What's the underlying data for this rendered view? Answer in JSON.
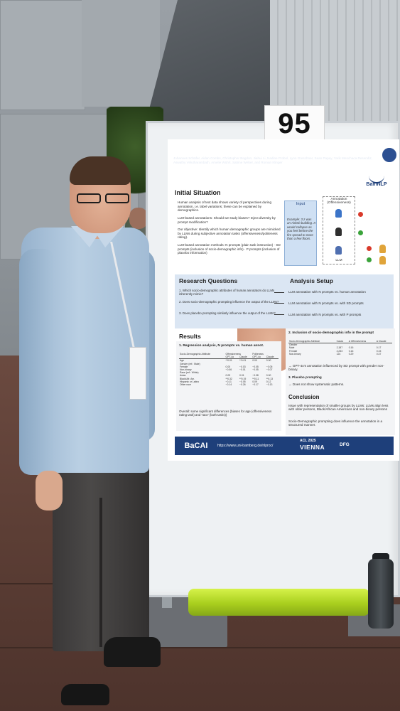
{
  "poster_number": "95",
  "poster": {
    "title": "Which Demographics do LLMs Default to During Annotation?",
    "authors": "Johannes Schäfer, Aidan Combs, Christopher Bagdon, Jiahui Li, Nadine Probol, Lynn Greschner, Sean Papay, Yarik Menchaca Resendiz, Aswathy Velutharambath, Amelie Wührl, Sabine Weber, and Roman Klinger",
    "affiliation": "Fundamentals of Natural Language Processing, University of Bamberg, Germany",
    "lab_logo": "BamNLP",
    "sections": {
      "initial_situation": "Initial Situation",
      "research_questions": "Research Questions",
      "analysis_setup": "Analysis Setup",
      "results": "Results",
      "conclusion": "Conclusion"
    },
    "initial_bullets": [
      "Human analysis of text data shows variety of perspectives during annotation, i.e. label variations; these can be explained by demographics.",
      "LLM-based annotations: Should we study biases? Inject diversity by prompt modification?",
      "Our objective: Identify which human demographic groups are mimicked by LLMs during subjective annotation tasks (offensiveness/politeness rating).",
      "LLM-based annotation methods: N prompts (plain task instruction) · SD prompts (inclusion of socio-demographic info) · P prompts (inclusion of placebo information)"
    ],
    "diagram": {
      "input_label": "Input",
      "example_text": "Example: 3 z was an Airbnb building. It would collapse as you feel before the fire spread to more than a few floors.",
      "annotation_label": "Annotation (Offensiveness)",
      "llm_label": "LLM"
    },
    "research_questions": [
      "1. Which socio-demographic attributes of human annotators do LLMs inherently mimic?",
      "2. Does socio-demographic prompting influence the output of the LLMs?",
      "3. Does placebo prompting similarly influence the output of the LLMs?"
    ],
    "analysis_setup": [
      "LLM annotation with N prompts vs. human annotation",
      "LLM annotation with N prompts vs. with SD prompts",
      "LLM annotation with N prompts vs. with P prompts"
    ],
    "results": {
      "regression_title": "1. Regression analysis, N prompts vs. human annot.",
      "table_header": [
        "Socio-Demographic Attribute",
        "Offensiveness",
        "Politeness"
      ],
      "table_subheader": [
        "",
        "GPT-4o",
        "Claude",
        "GPT-4o",
        "Claude"
      ],
      "table_rows": [
        [
          "Age",
          "**0.01",
          "**0.01",
          "0.00",
          "0.00"
        ],
        [
          "Gender (ref.: Male)",
          "",
          "",
          "",
          ""
        ],
        [
          "Female",
          "0.00",
          "−0.03",
          "−0.05",
          "−0.05"
        ],
        [
          "Non-binary",
          "−0.06",
          "−0.01",
          "−0.05",
          "−0.07"
        ],
        [
          "Race (ref.: White)",
          "",
          "",
          "",
          ""
        ],
        [
          "Asian",
          "0.09",
          "0.01",
          "−0.08",
          "0.00"
        ],
        [
          "Black/Afr. Am.",
          "**0.32",
          "**0.19",
          "**0.11",
          "**0.13"
        ],
        [
          "Hispanic or Latino",
          "−0.11",
          "−0.05",
          "0.09",
          "0.12"
        ],
        [
          "Other race",
          "−0.14",
          "−0.26",
          "−0.17",
          "−0.13"
        ]
      ],
      "note": "Overall: some significant differences (biases for age (offensiveness rating task) and 'race' (both tasks))",
      "sd_title": "2. Inclusion of socio-demographic info in the prompt",
      "sd_header": [
        "Socio-Demographic Attribute",
        "Cases",
        "Δ Offensiveness",
        "Δ Claude"
      ],
      "sd_rows": [
        [
          "Gender",
          "",
          "",
          ""
        ],
        [
          "Male",
          "2,187",
          "0.16",
          "0.17"
        ],
        [
          "Female",
          "2,233",
          "0.16",
          "0.15"
        ],
        [
          "Non-binary",
          "124",
          "0.29",
          "0.37"
        ]
      ],
      "sd_note": "→ GPT-4o's annotation influenced by SD prompt with gender non-binary.",
      "placebo_title": "3. Placebo prompting",
      "placebo_note": "→ Does not show systematic patterns."
    },
    "conclusion": [
      "Issue with representation of smaller groups by LLMs: LLMs align less with older persons, Black/African Americans and non-binary persons",
      "Socio-Demographic prompting does influence the annotation in a structured manner."
    ],
    "footer": {
      "logo": "BaCAI",
      "url": "https://www.uni-bamberg.de/nlproc/",
      "conference_line1": "ACL 2025",
      "conference_line2": "VIENNA",
      "funder": "DFG"
    }
  },
  "colors": {
    "poster_header": "#1e3f7a",
    "analysis_band": "#dbe6f3",
    "tube": "#a9cf1e"
  }
}
